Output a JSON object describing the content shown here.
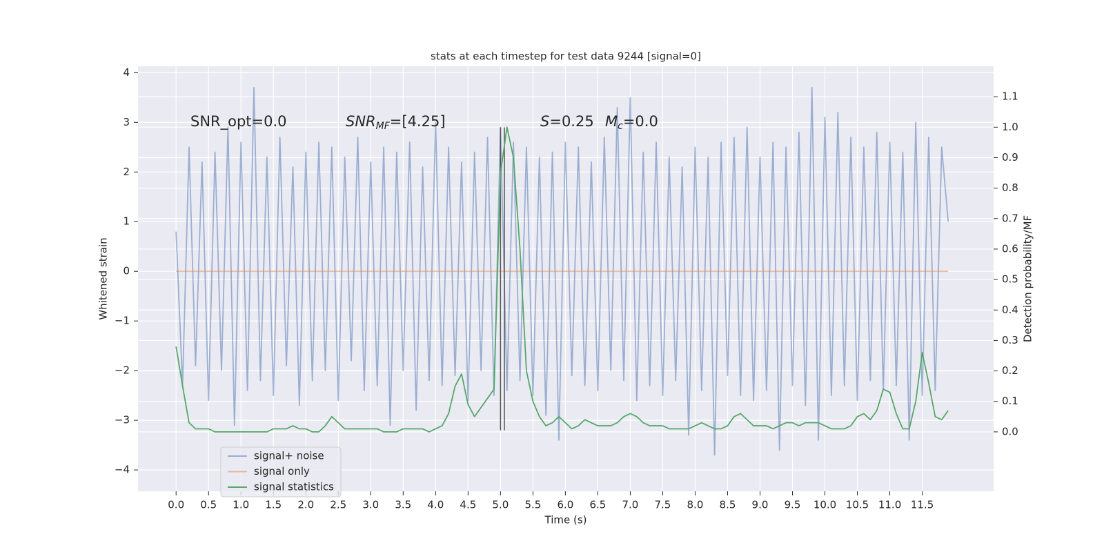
{
  "chart_data": {
    "type": "line",
    "title": "stats at each timestep for test data 9244 [signal=0]",
    "xlabel": "Time (s)",
    "ylabel": "Whitened strain",
    "y2label": "Detection probability/MF",
    "x": [
      0,
      0.1,
      0.2,
      0.3,
      0.4,
      0.5,
      0.6,
      0.7,
      0.8,
      0.9,
      1,
      1.1,
      1.2,
      1.3,
      1.4,
      1.5,
      1.6,
      1.7,
      1.8,
      1.9,
      2,
      2.1,
      2.2,
      2.3,
      2.4,
      2.5,
      2.6,
      2.7,
      2.8,
      2.9,
      3,
      3.1,
      3.2,
      3.3,
      3.4,
      3.5,
      3.6,
      3.7,
      3.8,
      3.9,
      4,
      4.1,
      4.2,
      4.3,
      4.4,
      4.5,
      4.6,
      4.7,
      4.8,
      4.9,
      5,
      5.1,
      5.2,
      5.3,
      5.4,
      5.5,
      5.6,
      5.7,
      5.8,
      5.9,
      6,
      6.1,
      6.2,
      6.3,
      6.4,
      6.5,
      6.6,
      6.7,
      6.8,
      6.9,
      7,
      7.1,
      7.2,
      7.3,
      7.4,
      7.5,
      7.6,
      7.7,
      7.8,
      7.9,
      8,
      8.1,
      8.2,
      8.3,
      8.4,
      8.5,
      8.6,
      8.7,
      8.8,
      8.9,
      9,
      9.1,
      9.2,
      9.3,
      9.4,
      9.5,
      9.6,
      9.7,
      9.8,
      9.9,
      10,
      10.1,
      10.2,
      10.3,
      10.4,
      10.5,
      10.6,
      10.7,
      10.8,
      10.9,
      11,
      11.1,
      11.2,
      11.3,
      11.4,
      11.5,
      11.6,
      11.7,
      11.8,
      11.9
    ],
    "series": [
      {
        "name": "signal+ noise",
        "color": "#4c72b0",
        "opacity": 0.5,
        "values": [
          0.8,
          -2.3,
          2.5,
          -1.9,
          2.2,
          -2.6,
          2.4,
          -2.0,
          2.9,
          -3.1,
          2.6,
          -2.4,
          3.7,
          -2.2,
          2.3,
          -2.5,
          2.7,
          -1.9,
          2.1,
          -2.7,
          2.4,
          -2.2,
          2.6,
          -2.0,
          2.5,
          -2.6,
          2.3,
          -1.8,
          2.7,
          -2.4,
          2.2,
          -2.3,
          2.5,
          -3.1,
          2.4,
          -2.0,
          2.6,
          -2.8,
          2.1,
          -2.2,
          3.0,
          -2.3,
          2.5,
          -2.1,
          2.2,
          -2.6,
          2.4,
          -2.0,
          2.7,
          -2.5,
          2.9,
          -2.4,
          2.6,
          -2.2,
          2.5,
          -2.5,
          2.3,
          -2.9,
          2.4,
          -3.4,
          2.6,
          -2.1,
          2.5,
          -2.3,
          2.2,
          -2.4,
          2.7,
          -2.0,
          3.3,
          -2.2,
          3.5,
          -2.6,
          2.4,
          -2.3,
          2.6,
          -2.5,
          2.3,
          -2.2,
          2.1,
          -3.3,
          2.5,
          -2.4,
          2.3,
          -3.7,
          2.6,
          -2.1,
          2.7,
          -2.5,
          2.9,
          -2.6,
          2.3,
          -2.4,
          2.6,
          -3.6,
          2.5,
          -2.3,
          2.8,
          -2.7,
          3.7,
          -3.4,
          3.1,
          -2.5,
          3.2,
          -2.3,
          2.7,
          -2.6,
          2.5,
          -2.2,
          2.8,
          -2.4,
          2.6,
          -2.3,
          2.4,
          -3.4,
          3.0,
          -2.5,
          2.7,
          -2.4,
          2.5,
          1.0
        ]
      },
      {
        "name": "signal only",
        "color": "#dd8452",
        "opacity": 0.5,
        "values": [
          0,
          0,
          0,
          0,
          0,
          0,
          0,
          0,
          0,
          0,
          0,
          0,
          0,
          0,
          0,
          0,
          0,
          0,
          0,
          0,
          0,
          0,
          0,
          0,
          0,
          0,
          0,
          0,
          0,
          0,
          0,
          0,
          0,
          0,
          0,
          0,
          0,
          0,
          0,
          0,
          0,
          0,
          0,
          0,
          0,
          0,
          0,
          0,
          0,
          0,
          0,
          0,
          0,
          0,
          0,
          0,
          0,
          0,
          0,
          0,
          0,
          0,
          0,
          0,
          0,
          0,
          0,
          0,
          0,
          0,
          0,
          0,
          0,
          0,
          0,
          0,
          0,
          0,
          0,
          0,
          0,
          0,
          0,
          0,
          0,
          0,
          0,
          0,
          0,
          0,
          0,
          0,
          0,
          0,
          0,
          0,
          0,
          0,
          0,
          0,
          0,
          0,
          0,
          0,
          0,
          0,
          0,
          0,
          0,
          0,
          0,
          0,
          0,
          0,
          0,
          0,
          0,
          0,
          0,
          0
        ]
      },
      {
        "name": "signal statistics",
        "color": "#55a868",
        "opacity": 1,
        "axis": "y2",
        "values": [
          0.28,
          0.15,
          0.03,
          0.01,
          0.01,
          0.01,
          0,
          0,
          0,
          0,
          0,
          0,
          0,
          0,
          0,
          0.01,
          0.01,
          0.01,
          0.02,
          0.01,
          0.01,
          0,
          0,
          0.02,
          0.05,
          0.03,
          0.01,
          0.01,
          0.01,
          0.01,
          0.01,
          0.01,
          0,
          0,
          0,
          0.01,
          0.01,
          0.01,
          0.01,
          0,
          0.01,
          0.02,
          0.06,
          0.15,
          0.19,
          0.09,
          0.05,
          0.08,
          0.11,
          0.14,
          0.85,
          1.0,
          0.9,
          0.6,
          0.2,
          0.1,
          0.05,
          0.02,
          0.03,
          0.05,
          0.03,
          0.01,
          0.02,
          0.04,
          0.03,
          0.02,
          0.02,
          0.02,
          0.03,
          0.05,
          0.06,
          0.05,
          0.03,
          0.02,
          0.02,
          0.02,
          0.01,
          0.01,
          0.01,
          0.01,
          0.02,
          0.03,
          0.02,
          0.01,
          0.01,
          0.02,
          0.05,
          0.06,
          0.04,
          0.02,
          0.02,
          0.02,
          0.01,
          0.02,
          0.03,
          0.03,
          0.02,
          0.03,
          0.03,
          0.03,
          0.02,
          0.01,
          0.01,
          0.01,
          0.02,
          0.05,
          0.06,
          0.04,
          0.07,
          0.14,
          0.13,
          0.06,
          0.01,
          0.01,
          0.1,
          0.26,
          0.16,
          0.05,
          0.04,
          0.07
        ]
      }
    ],
    "vlines": {
      "x": [
        5.0,
        5.06
      ],
      "ymin": -3.2,
      "ymax": 2.9,
      "color": "#555555"
    },
    "annotations": [
      [
        {
          "text": "SNR_opt=0.0"
        }
      ],
      [
        {
          "text": "SNR",
          "style": "italic"
        },
        {
          "text": "MF",
          "style": "sub"
        },
        {
          "text": "=[4.25]"
        }
      ],
      [
        {
          "text": "S",
          "style": "italic"
        },
        {
          "text": "=0.25"
        }
      ],
      [
        {
          "text": "M",
          "style": "italic"
        },
        {
          "text": "c",
          "style": "sub"
        },
        {
          "text": "=0.0"
        }
      ]
    ],
    "xlim": [
      -0.587,
      12.6
    ],
    "ylim": [
      -4.43,
      4.13
    ],
    "y2lim": [
      -0.195,
      1.2
    ],
    "xticks": [
      {
        "value": 0,
        "label": "0.0"
      },
      0.5,
      {
        "value": 1,
        "label": "1.0"
      },
      1.5,
      {
        "value": 2,
        "label": "2.0"
      },
      2.5,
      {
        "value": 3,
        "label": "3.0"
      },
      3.5,
      {
        "value": 4,
        "label": "4.0"
      },
      4.5,
      {
        "value": 5,
        "label": "5.0"
      },
      5.5,
      {
        "value": 6,
        "label": "6.0"
      },
      6.5,
      {
        "value": 7,
        "label": "7.0"
      },
      7.5,
      {
        "value": 8,
        "label": "8.0"
      },
      8.5,
      {
        "value": 9,
        "label": "9.0"
      },
      9.5,
      {
        "value": 10,
        "label": "10.0"
      },
      10.5,
      {
        "value": 11,
        "label": "11.0"
      },
      11.5
    ],
    "yticks": [
      {
        "value": -4,
        "label": "−4"
      },
      {
        "value": -3,
        "label": "−3"
      },
      {
        "value": -2,
        "label": "−2"
      },
      {
        "value": -1,
        "label": "−1"
      },
      0,
      1,
      2,
      3,
      4
    ],
    "y2ticks": [
      {
        "value": 0,
        "label": "0.0"
      },
      0.1,
      0.2,
      0.3,
      0.4,
      0.5,
      0.6,
      0.7,
      0.8,
      0.9,
      {
        "value": 1,
        "label": "1.0"
      },
      1.1
    ],
    "grid": true,
    "legend": "lower left"
  }
}
